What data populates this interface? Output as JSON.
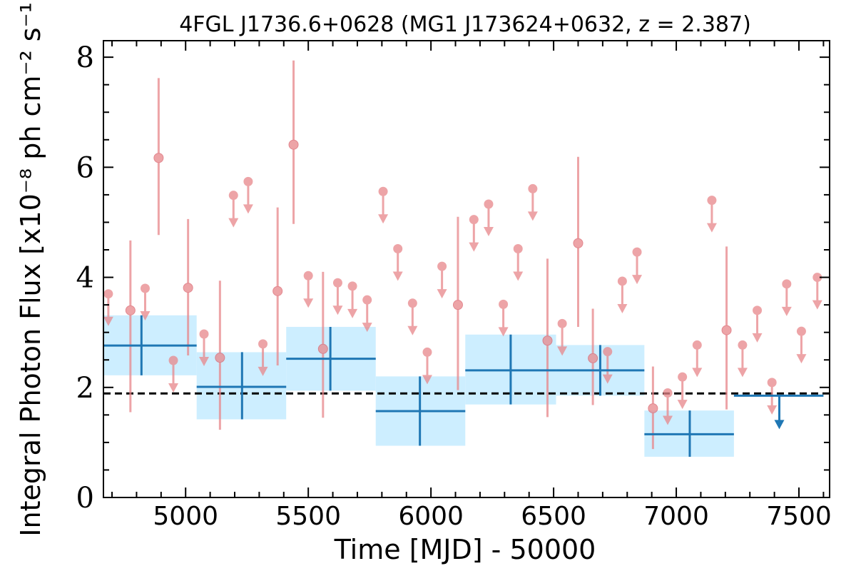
{
  "chart_data": {
    "type": "scatter",
    "title": "4FGL J1736.6+0628 (MG1 J173624+0632, z = 2.387)",
    "xlabel": "Time [MJD] - 50000",
    "ylabel": "Integral Photon Flux [x10⁻⁸ ph cm⁻² s⁻¹]",
    "xlim": [
      4665,
      7625
    ],
    "ylim": [
      0,
      8.3
    ],
    "xticks": [
      "5000",
      "5500",
      "6000",
      "6500",
      "7000",
      "7500"
    ],
    "xtick_values": [
      5000,
      5500,
      6000,
      6500,
      7000,
      7500
    ],
    "yticks": [
      "0",
      "2",
      "4",
      "6",
      "8"
    ],
    "ytick_values": [
      0,
      2,
      4,
      6,
      8
    ],
    "reference_line": {
      "y": 1.89,
      "style": "dashed",
      "color": "#000000"
    },
    "colors": {
      "short_bins": "#e8868a",
      "long_bins": "#1f77b4",
      "band_fill": "#cdeeff"
    },
    "series": [
      {
        "points": [
          {
            "x": 4775,
            "y": 3.4,
            "ylo": 1.55,
            "yhi": 4.67
          },
          {
            "x": 4890,
            "y": 6.17,
            "ylo": 4.77,
            "yhi": 7.62
          },
          {
            "x": 5010,
            "y": 3.81,
            "ylo": 2.58,
            "yhi": 5.06
          },
          {
            "x": 5140,
            "y": 2.54,
            "ylo": 1.23,
            "yhi": 3.94
          },
          {
            "x": 5375,
            "y": 3.75,
            "ylo": 2.4,
            "yhi": 5.27
          },
          {
            "x": 5440,
            "y": 6.41,
            "ylo": 4.97,
            "yhi": 7.94
          },
          {
            "x": 5560,
            "y": 2.7,
            "ylo": 1.45,
            "yhi": 4.1
          },
          {
            "x": 6110,
            "y": 3.5,
            "ylo": 1.95,
            "yhi": 5.1
          },
          {
            "x": 6475,
            "y": 2.85,
            "ylo": 1.46,
            "yhi": 4.34
          },
          {
            "x": 6600,
            "y": 4.62,
            "ylo": 3.1,
            "yhi": 6.19
          },
          {
            "x": 6660,
            "y": 2.53,
            "ylo": 1.68,
            "yhi": 3.43
          },
          {
            "x": 6905,
            "y": 1.62,
            "ylo": 0.88,
            "yhi": 2.38
          },
          {
            "x": 7205,
            "y": 3.04,
            "ylo": 1.6,
            "yhi": 4.56
          }
        ],
        "upper_limits": [
          {
            "x": 4685,
            "y": 3.7
          },
          {
            "x": 4835,
            "y": 3.8
          },
          {
            "x": 4950,
            "y": 2.49
          },
          {
            "x": 5075,
            "y": 2.97
          },
          {
            "x": 5195,
            "y": 5.49
          },
          {
            "x": 5255,
            "y": 5.74
          },
          {
            "x": 5315,
            "y": 2.79
          },
          {
            "x": 5500,
            "y": 4.03
          },
          {
            "x": 5620,
            "y": 3.9
          },
          {
            "x": 5680,
            "y": 3.84
          },
          {
            "x": 5740,
            "y": 3.59
          },
          {
            "x": 5805,
            "y": 5.56
          },
          {
            "x": 5865,
            "y": 4.52
          },
          {
            "x": 5925,
            "y": 3.53
          },
          {
            "x": 5985,
            "y": 2.64
          },
          {
            "x": 6045,
            "y": 4.2
          },
          {
            "x": 6175,
            "y": 5.05
          },
          {
            "x": 6235,
            "y": 5.33
          },
          {
            "x": 6295,
            "y": 3.51
          },
          {
            "x": 6355,
            "y": 4.52
          },
          {
            "x": 6415,
            "y": 5.61
          },
          {
            "x": 6535,
            "y": 3.16
          },
          {
            "x": 6720,
            "y": 2.65
          },
          {
            "x": 6780,
            "y": 3.93
          },
          {
            "x": 6840,
            "y": 4.46
          },
          {
            "x": 6965,
            "y": 1.9
          },
          {
            "x": 7025,
            "y": 2.19
          },
          {
            "x": 7085,
            "y": 2.77
          },
          {
            "x": 7145,
            "y": 5.4
          },
          {
            "x": 7270,
            "y": 2.77
          },
          {
            "x": 7330,
            "y": 3.4
          },
          {
            "x": 7390,
            "y": 2.09
          },
          {
            "x": 7450,
            "y": 3.88
          },
          {
            "x": 7510,
            "y": 3.02
          },
          {
            "x": 7575,
            "y": 4.0
          }
        ]
      },
      {
        "points": [
          {
            "x0": 4665,
            "x1": 5045,
            "x": 4820,
            "y": 2.76,
            "ylo": 2.22,
            "yhi": 3.31
          },
          {
            "x0": 5045,
            "x1": 5410,
            "x": 5230,
            "y": 2.01,
            "ylo": 1.42,
            "yhi": 2.64
          },
          {
            "x0": 5410,
            "x1": 5775,
            "x": 5590,
            "y": 2.52,
            "ylo": 1.94,
            "yhi": 3.1
          },
          {
            "x0": 5775,
            "x1": 6140,
            "x": 5955,
            "y": 1.57,
            "ylo": 0.94,
            "yhi": 2.2
          },
          {
            "x0": 6140,
            "x1": 6510,
            "x": 6325,
            "y": 2.31,
            "ylo": 1.69,
            "yhi": 2.96
          },
          {
            "x0": 6510,
            "x1": 6870,
            "x": 6690,
            "y": 2.31,
            "ylo": 1.85,
            "yhi": 2.77
          },
          {
            "x0": 6870,
            "x1": 7235,
            "x": 7055,
            "y": 1.15,
            "ylo": 0.74,
            "yhi": 1.58
          }
        ],
        "upper_limits": [
          {
            "x0": 7235,
            "x1": 7600,
            "x": 7420,
            "y": 1.85
          }
        ]
      }
    ]
  }
}
